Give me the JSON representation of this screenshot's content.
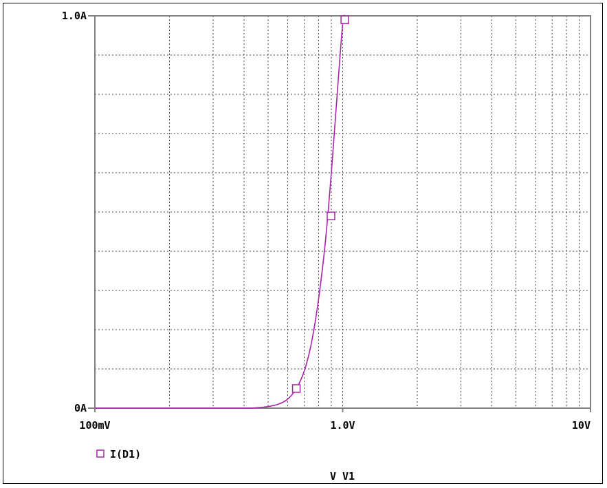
{
  "chart_data": {
    "type": "line",
    "title": "",
    "xlabel": "V V1",
    "ylabel": "",
    "x_scale": "log",
    "xlim": [
      0.1,
      10
    ],
    "ylim": [
      0,
      1.0
    ],
    "x_tick_labels": [
      {
        "value": 0.1,
        "label": "100mV"
      },
      {
        "value": 1.0,
        "label": "1.0V"
      },
      {
        "value": 10,
        "label": "10V"
      }
    ],
    "y_tick_labels": [
      {
        "value": 1.0,
        "label": "1.0A"
      },
      {
        "value": 0,
        "label": "0A"
      }
    ],
    "grid": true,
    "legend_position": "bottom-left",
    "series": [
      {
        "name": "I(D1)",
        "color": "#aa22aa",
        "marker": "square",
        "x": [
          0.1,
          0.2,
          0.3,
          0.4,
          0.45,
          0.5,
          0.55,
          0.6,
          0.65,
          0.7,
          0.75,
          0.8,
          0.85,
          0.9,
          0.95,
          1.0,
          1.02
        ],
        "y": [
          0,
          0,
          0,
          0.0,
          0.001,
          0.004,
          0.01,
          0.023,
          0.05,
          0.095,
          0.17,
          0.28,
          0.42,
          0.6,
          0.8,
          0.98,
          1.0
        ],
        "markers": [
          {
            "x": 0.65,
            "y": 0.05
          },
          {
            "x": 0.897,
            "y": 0.49
          },
          {
            "x": 1.02,
            "y": 0.99
          }
        ]
      }
    ]
  }
}
